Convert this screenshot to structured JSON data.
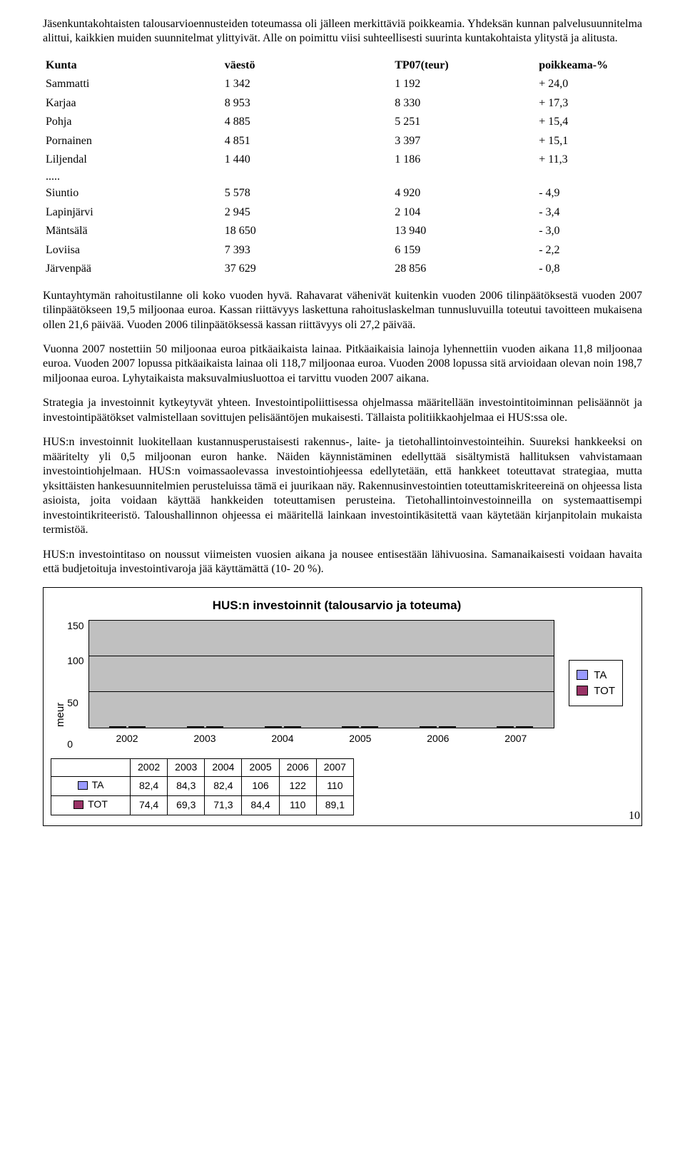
{
  "intro": {
    "p1": "Jäsenkuntakohtaisten talousarvioennusteiden toteumassa oli jälleen merkittäviä poikkeamia. Yhdeksän kunnan palvelusuunnitelma alittui, kaikkien muiden suunnitelmat ylittyivät. Alle on poimittu viisi suhteellisesti suurinta kuntakohtaista ylitystä ja alitusta."
  },
  "kunta_table": {
    "headers": {
      "k": "Kunta",
      "v": "väestö",
      "t": "TP07(teur)",
      "p": "poikkeama-%"
    },
    "top": [
      {
        "k": "Sammatti",
        "v": "1 342",
        "t": "1 192",
        "p": "+ 24,0"
      },
      {
        "k": "Karjaa",
        "v": "8 953",
        "t": "8 330",
        "p": "+ 17,3"
      },
      {
        "k": "Pohja",
        "v": "4 885",
        "t": "5 251",
        "p": "+ 15,4"
      },
      {
        "k": "Pornainen",
        "v": "4 851",
        "t": "3 397",
        "p": "+ 15,1"
      },
      {
        "k": "Liljendal",
        "v": "1 440",
        "t": "1 186",
        "p": "+ 11,3"
      }
    ],
    "ellipsis": ".....",
    "bottom": [
      {
        "k": "Siuntio",
        "v": "5 578",
        "t": "4 920",
        "p": "- 4,9"
      },
      {
        "k": "Lapinjärvi",
        "v": "2 945",
        "t": "2 104",
        "p": "- 3,4"
      },
      {
        "k": "Mäntsälä",
        "v": "18 650",
        "t": "13 940",
        "p": "- 3,0"
      },
      {
        "k": "Loviisa",
        "v": "7 393",
        "t": "6 159",
        "p": "- 2,2"
      },
      {
        "k": "Järvenpää",
        "v": "37 629",
        "t": "28 856",
        "p": "- 0,8"
      }
    ]
  },
  "paras": {
    "p2": "Kuntayhtymän rahoitustilanne oli koko vuoden hyvä. Rahavarat vähenivät kuitenkin vuoden 2006 tilinpäätöksestä vuoden 2007 tilinpäätökseen 19,5 miljoonaa euroa. Kassan riittävyys laskettuna rahoituslaskelman tunnusluvuilla toteutui tavoitteen mukaisena ollen 21,6 päivää. Vuoden 2006 tilinpäätöksessä kassan riittävyys oli 27,2 päivää.",
    "p3": "Vuonna 2007 nostettiin 50 miljoonaa euroa pitkäaikaista lainaa. Pitkäaikaisia lainoja lyhennettiin vuoden aikana 11,8 miljoonaa euroa. Vuoden 2007 lopussa pitkäaikaista lainaa oli 118,7 miljoonaa euroa. Vuoden 2008 lopussa sitä arvioidaan olevan noin 198,7 miljoonaa euroa. Lyhytaikaista maksuvalmiusluottoa ei tarvittu vuoden 2007 aikana.",
    "p4": "Strategia ja investoinnit kytkeytyvät yhteen. Investointipoliittisessa ohjelmassa määritellään investointitoiminnan pelisäännöt ja investointipäätökset valmistellaan sovittujen pelisääntöjen mukaisesti. Tällaista politiikkaohjelmaa ei HUS:ssa ole.",
    "p5": "HUS:n investoinnit luokitellaan kustannusperustaisesti rakennus-, laite- ja tietohallintoinvestointeihin. Suureksi hankkeeksi on määritelty yli 0,5 miljoonan euron hanke. Näiden käynnistäminen edellyttää sisältymistä hallituksen vahvistamaan investointiohjelmaan. HUS:n voimassaolevassa investointiohjeessa edellytetään, että hankkeet toteuttavat strategiaa, mutta yksittäisten hankesuunnitelmien perusteluissa tämä ei juurikaan näy. Rakennusinvestointien toteuttamiskriteereinä on ohjeessa lista asioista, joita voidaan käyttää hankkeiden toteuttamisen perusteina. Tietohallintoinvestoinneilla on systemaattisempi investointikriteeristö. Taloushallinnon ohjeessa ei määritellä lainkaan investointikäsitettä vaan käytetään kirjanpitolain mukaista termistöä.",
    "p6": "HUS:n investointitaso on noussut viimeisten vuosien aikana ja nousee entisestään lähivuosina. Samanaikaisesti voidaan havaita että budjetoituja investointivaroja jää käyttämättä (10- 20 %)."
  },
  "chart": {
    "title": "HUS:n investoinnit (talousarvio ja toteuma)",
    "ylabel": "meur",
    "ylim": [
      0,
      150
    ],
    "ytick_step": 50,
    "yticks": [
      "150",
      "100",
      "50",
      "0"
    ],
    "plot_bg": "#c0c0c0",
    "grid_color": "#000000",
    "series": {
      "TA": {
        "label": "TA",
        "color": "#9999ff"
      },
      "TOT": {
        "label": "TOT",
        "color": "#993366"
      }
    },
    "categories": [
      "2002",
      "2003",
      "2004",
      "2005",
      "2006",
      "2007"
    ],
    "TA": [
      82.4,
      84.3,
      82.4,
      106,
      122,
      110
    ],
    "TOT": [
      74.4,
      69.3,
      71.3,
      84.4,
      110,
      89.1
    ],
    "data_table": {
      "years": [
        "2002",
        "2003",
        "2004",
        "2005",
        "2006",
        "2007"
      ],
      "TA": [
        "82,4",
        "84,3",
        "82,4",
        "106",
        "122",
        "110"
      ],
      "TOT": [
        "74,4",
        "69,3",
        "71,3",
        "84,4",
        "110",
        "89,1"
      ]
    },
    "page_number": "10"
  }
}
